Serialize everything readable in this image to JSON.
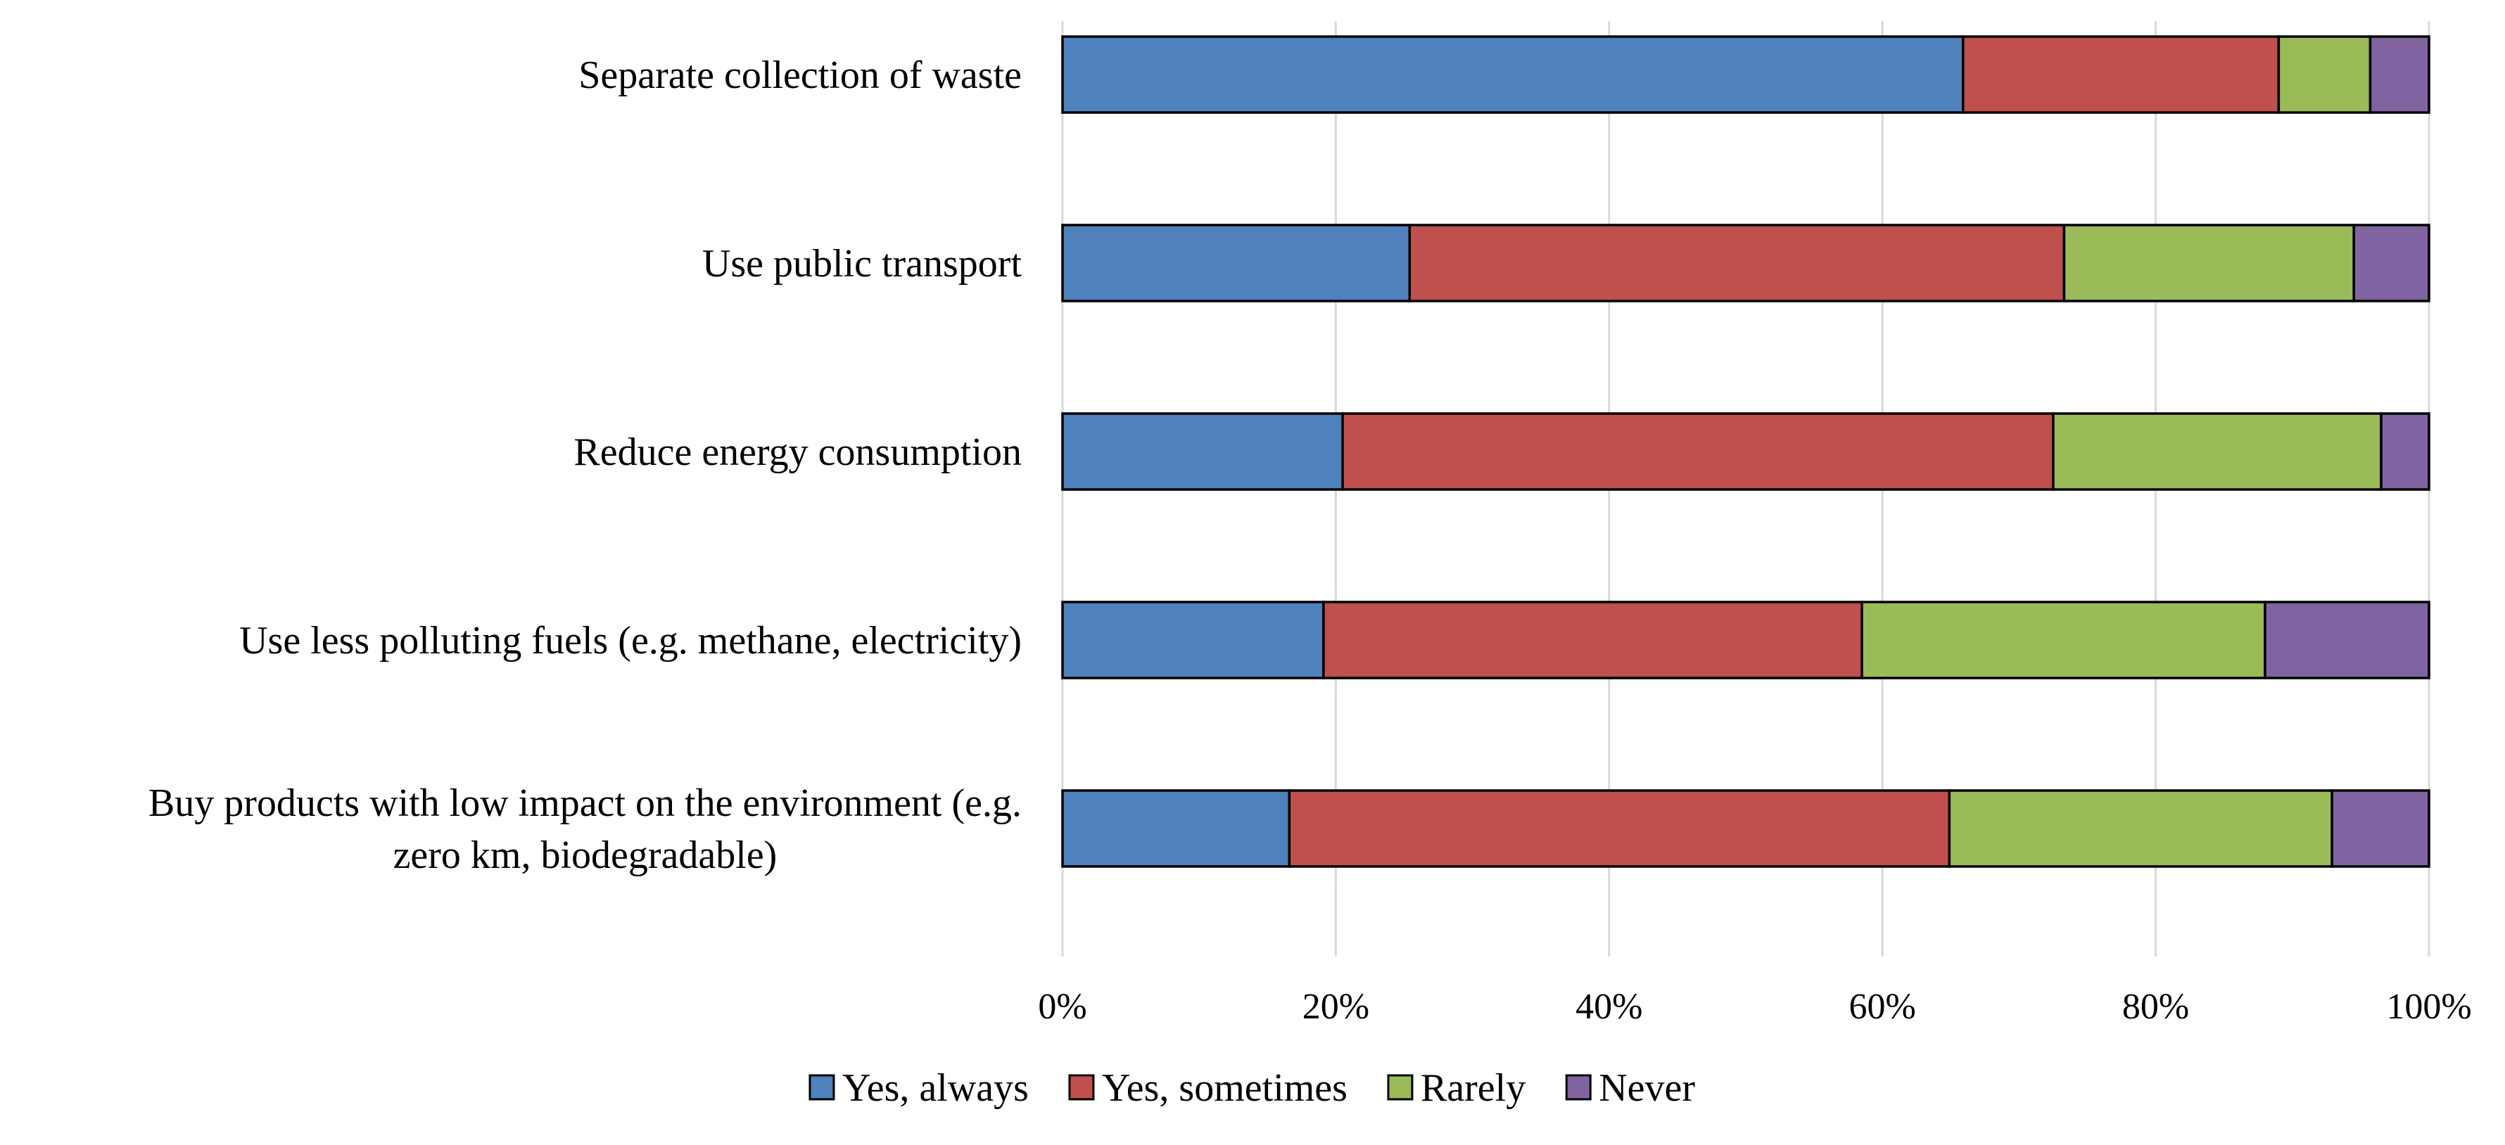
{
  "chart_data": {
    "type": "bar",
    "orientation": "horizontal",
    "stacked": "percent",
    "categories": [
      "Separate collection of waste",
      "Use public transport",
      "Reduce energy consumption",
      "Use less polluting fuels (e.g. methane, electricity)",
      "Buy products with low impact on the environment (e.g. zero km, biodegradable)"
    ],
    "category_label_lines": [
      [
        "Separate collection of waste"
      ],
      [
        "Use public transport"
      ],
      [
        "Reduce energy consumption"
      ],
      [
        "Use less polluting fuels (e.g. methane, electricity)"
      ],
      [
        "Buy products with low impact on the environment (e.g.",
        "zero km, biodegradable)"
      ]
    ],
    "series": [
      {
        "name": "Yes, always",
        "color": "#4f81bd",
        "values": [
          65.9,
          25.4,
          20.5,
          19.1,
          16.6
        ]
      },
      {
        "name": "Yes, sometimes",
        "color": "#c0504d",
        "values": [
          23.1,
          47.9,
          52.0,
          39.4,
          48.3
        ]
      },
      {
        "name": "Rarely",
        "color": "#9bbb59",
        "values": [
          6.7,
          21.2,
          24.0,
          29.5,
          28.0
        ]
      },
      {
        "name": "Never",
        "color": "#8064a2",
        "values": [
          4.3,
          5.5,
          3.5,
          12.0,
          7.1
        ]
      }
    ],
    "xlim": [
      0,
      100
    ],
    "xticks": [
      "0%",
      "20%",
      "40%",
      "60%",
      "80%",
      "100%"
    ],
    "grid": true,
    "legend_position": "bottom",
    "title": "",
    "xlabel": "",
    "ylabel": ""
  }
}
